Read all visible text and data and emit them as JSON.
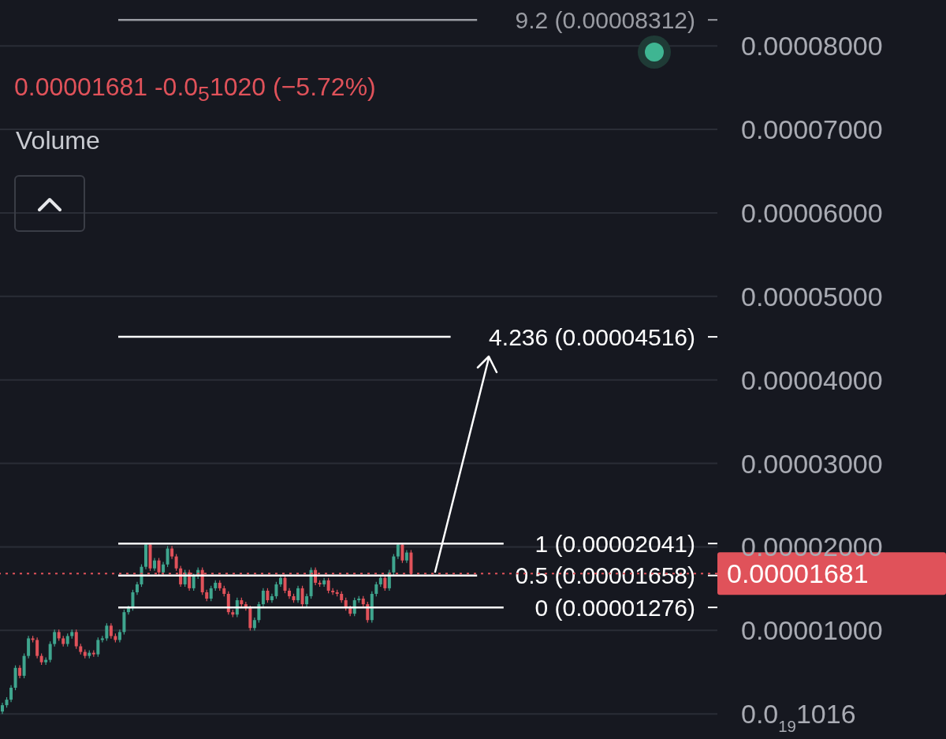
{
  "chart_data": {
    "type": "candlestick",
    "annotations": [
      "0.00001681 -0.0$_{5}$1020 (−5.72%)",
      "Volume"
    ],
    "colors": [
      "#3fa58e",
      "#3fa58e",
      "#3fa58e",
      "#3fa58e",
      "#e0525a",
      "#3fa58e",
      "#3fa58e",
      "#e0525a",
      "#e0525a",
      "#e0525a",
      "#3fa58e",
      "#3fa58e",
      "#3fa58e",
      "#e0525a",
      "#e0525a",
      "#3fa58e",
      "#3fa58e",
      "#e0525a",
      "#e0525a",
      "#e0525a",
      "#3fa58e",
      "#e0525a",
      "#3fa58e",
      "#3fa58e",
      "#3fa58e",
      "#e0525a",
      "#e0525a",
      "#3fa58e",
      "#3fa58e",
      "#3fa58e",
      "#3fa58e",
      "#3fa58e",
      "#3fa58e",
      "#3fa58e",
      "#e0525a",
      "#3fa58e",
      "#e0525a",
      "#3fa58e",
      "#3fa58e",
      "#e0525a",
      "#e0525a",
      "#e0525a",
      "#3fa58e",
      "#e0525a",
      "#3fa58e",
      "#3fa58e",
      "#e0525a",
      "#e0525a",
      "#3fa58e",
      "#3fa58e",
      "#e0525a",
      "#e0525a",
      "#e0525a",
      "#e0525a",
      "#3fa58e",
      "#e0525a",
      "#e0525a",
      "#e0525a",
      "#3fa58e",
      "#3fa58e",
      "#3fa58e",
      "#e0525a",
      "#3fa58e",
      "#3fa58e",
      "#3fa58e",
      "#e0525a",
      "#e0525a",
      "#e0525a",
      "#3fa58e",
      "#e0525a",
      "#3fa58e",
      "#3fa58e",
      "#e0525a",
      "#e0525a",
      "#3fa58e",
      "#e0525a",
      "#e0525a",
      "#e0525a",
      "#e0525a",
      "#e0525a",
      "#e0525a",
      "#3fa58e",
      "#3fa58e",
      "#e0525a",
      "#e0525a",
      "#3fa58e",
      "#3fa58e",
      "#3fa58e",
      "#e0525a",
      "#3fa58e",
      "#3fa58e",
      "#3fa58e",
      "#e0525a",
      "#3fa58e",
      "#e0525a",
      null,
      null,
      null,
      null,
      null,
      null,
      null,
      null,
      null,
      null,
      null,
      null,
      null,
      null,
      null,
      null,
      null,
      null,
      null,
      null,
      null,
      null,
      null,
      null,
      null,
      null,
      null,
      null,
      null,
      null,
      null,
      null,
      null,
      null,
      null,
      null,
      null,
      null,
      null,
      null,
      null,
      null,
      null,
      null,
      null,
      null,
      null,
      null,
      null,
      null,
      null,
      null,
      null,
      null,
      null,
      null,
      null,
      null,
      null,
      null,
      null,
      null,
      null,
      null,
      null,
      null,
      null,
      null,
      null,
      null
    ],
    "grid": "y",
    "ylim": [
      -3e-06,
      8.55e-05
    ],
    "yticks": [
      {
        "value": 1.016e-20,
        "label": "0.0$_{19}$1016"
      },
      {
        "value": 1e-05,
        "label": "0.00001000"
      },
      {
        "value": 2e-05,
        "label": "0.00002000"
      },
      {
        "value": 3e-05,
        "label": "0.00003000"
      },
      {
        "value": 4e-05,
        "label": "0.00004000"
      },
      {
        "value": 5e-05,
        "label": "0.00005000"
      },
      {
        "value": 6e-05,
        "label": "0.00006000"
      },
      {
        "value": 7e-05,
        "label": "0.00007000"
      },
      {
        "value": 8e-05,
        "label": "0.00008000"
      }
    ],
    "ref_lines": [
      {
        "axis": "y",
        "value": 8.312e-05,
        "label": "9.2 (0.00008312)",
        "color": "#9a9ca3"
      },
      {
        "axis": "y",
        "value": 4.516e-05,
        "label": "4.236 (0.00004516)",
        "color": "#ffffff"
      },
      {
        "axis": "y",
        "value": 2.041e-05,
        "label": "1 (0.00002041)",
        "color": "#ffffff"
      },
      {
        "axis": "y",
        "value": 1.658e-05,
        "label": "0.5 (0.00001658)",
        "color": "#ffffff"
      },
      {
        "axis": "y",
        "value": 1.276e-05,
        "label": "0 (0.00001276)",
        "color": "#ffffff"
      },
      {
        "axis": "y",
        "value": 1.681e-05,
        "label": "0.00001681",
        "color": "#e0525a",
        "line_style": "dotted"
      }
    ],
    "categories": [
      null,
      null,
      null,
      null,
      null,
      null,
      null,
      null,
      null,
      null,
      null,
      null,
      null,
      null,
      null,
      null,
      null,
      null,
      null,
      null,
      null,
      null,
      null,
      null,
      null,
      null,
      null,
      null,
      null,
      null,
      null,
      null,
      null,
      null,
      null,
      null,
      null,
      null,
      null,
      null,
      null,
      null,
      null,
      null,
      null,
      null,
      null,
      null,
      null,
      null,
      null,
      null,
      null,
      null,
      null,
      null,
      null,
      null,
      null,
      null,
      null,
      null,
      null,
      null,
      null,
      null,
      null,
      null,
      null,
      null,
      null,
      null,
      null,
      null,
      null,
      null,
      null,
      null,
      null,
      null,
      null,
      null,
      null,
      null,
      null,
      null,
      null,
      null,
      null,
      null,
      null,
      null,
      null,
      null,
      null,
      null,
      null,
      null,
      null,
      null,
      null,
      null,
      null,
      null,
      null,
      null,
      null,
      null,
      null,
      null,
      null,
      null,
      null,
      null,
      null,
      null,
      null,
      null,
      null,
      null,
      null,
      null,
      null,
      null,
      null,
      null,
      null,
      null,
      null,
      null,
      null,
      null,
      null,
      null,
      null,
      null,
      null,
      null,
      null,
      null,
      null,
      null,
      null,
      null,
      null,
      null,
      null,
      null,
      null,
      null,
      null,
      null,
      null,
      null,
      null,
      null,
      null,
      null,
      null,
      null,
      null,
      null,
      null,
      null,
      null
    ],
    "ohlc": [
      [
        2.9e-07,
        1.35e-06,
        0,
        1.05e-06
      ],
      [
        1.05e-06,
        2.01e-06,
        7.5e-07,
        1.71e-06
      ],
      [
        1.71e-06,
        3.44e-06,
        1.41e-06,
        3.14e-06
      ],
      [
        3.14e-06,
        5.82e-06,
        2.84e-06,
        5.52e-06
      ],
      [
        5.52e-06,
        5.82e-06,
        4.27e-06,
        4.57e-06
      ],
      [
        4.57e-06,
        7.25e-06,
        4.27e-06,
        6.95e-06
      ],
      [
        6.95e-06,
        9.35e-06,
        6.65e-06,
        9.05e-06
      ],
      [
        9.05e-06,
        9.35e-06,
        8.56e-06,
        8.86e-06
      ],
      [
        8.86e-06,
        9.16e-06,
        6.65e-06,
        6.95e-06
      ],
      [
        6.95e-06,
        7.25e-06,
        5.89e-06,
        6.19e-06
      ],
      [
        6.19e-06,
        6.78e-06,
        5.89e-06,
        6.48e-06
      ],
      [
        6.48e-06,
        8.68e-06,
        6.18e-06,
        8.38e-06
      ],
      [
        8.38e-06,
        1.011e-05,
        8.08e-06,
        9.81e-06
      ],
      [
        9.81e-06,
        1.011e-05,
        8.75e-06,
        9.05e-06
      ],
      [
        9.05e-06,
        9.35e-06,
        8.08e-06,
        8.38e-06
      ],
      [
        8.38e-06,
        9.63e-06,
        8.08e-06,
        9.33e-06
      ],
      [
        9.33e-06,
        1.011e-05,
        9.03e-06,
        9.81e-06
      ],
      [
        9.81e-06,
        1.011e-05,
        7.8e-06,
        8.1e-06
      ],
      [
        8.1e-06,
        8.4e-06,
        7.13e-06,
        7.43e-06
      ],
      [
        7.43e-06,
        7.73e-06,
        6.65e-06,
        6.95e-06
      ],
      [
        6.95e-06,
        7.63e-06,
        6.65e-06,
        7.33e-06
      ],
      [
        7.33e-06,
        7.63e-06,
        6.84e-06,
        7.14e-06
      ],
      [
        7.14e-06,
        9.16e-06,
        6.84e-06,
        8.86e-06
      ],
      [
        8.86e-06,
        9.35e-06,
        8.56e-06,
        9.05e-06
      ],
      [
        9.05e-06,
        1.087e-05,
        8.75e-06,
        1.057e-05
      ],
      [
        1.057e-05,
        1.087e-05,
        9.03e-06,
        9.33e-06
      ],
      [
        9.33e-06,
        9.63e-06,
        8.56e-06,
        8.86e-06
      ],
      [
        8.86e-06,
        1.011e-05,
        8.56e-06,
        9.81e-06
      ],
      [
        9.81e-06,
        1.249e-05,
        9.51e-06,
        1.219e-05
      ],
      [
        1.219e-05,
        1.297e-05,
        1.189e-05,
        1.267e-05
      ],
      [
        1.267e-05,
        1.487e-05,
        1.237e-05,
        1.457e-05
      ],
      [
        1.457e-05,
        1.582e-05,
        1.427e-05,
        1.552e-05
      ],
      [
        1.552e-05,
        1.792e-05,
        1.522e-05,
        1.762e-05
      ],
      [
        1.762e-05,
        2.041e-05,
        1.732e-05,
        2.029e-05
      ],
      [
        2.029e-05,
        2.041e-05,
        1.713e-05,
        1.743e-05
      ],
      [
        1.743e-05,
        1.868e-05,
        1.713e-05,
        1.838e-05
      ],
      [
        1.838e-05,
        1.868e-05,
        1.665e-05,
        1.695e-05
      ],
      [
        1.695e-05,
        1.82e-05,
        1.665e-05,
        1.79e-05
      ],
      [
        1.79e-05,
        2.011e-05,
        1.76e-05,
        1.981e-05
      ],
      [
        1.981e-05,
        2.011e-05,
        1.856e-05,
        1.886e-05
      ],
      [
        1.886e-05,
        1.916e-05,
        1.713e-05,
        1.743e-05
      ],
      [
        1.743e-05,
        1.773e-05,
        1.522e-05,
        1.552e-05
      ],
      [
        1.552e-05,
        1.725e-05,
        1.522e-05,
        1.695e-05
      ],
      [
        1.695e-05,
        1.725e-05,
        1.475e-05,
        1.505e-05
      ],
      [
        1.505e-05,
        1.678e-05,
        1.475e-05,
        1.648e-05
      ],
      [
        1.648e-05,
        1.754e-05,
        1.618e-05,
        1.724e-05
      ],
      [
        1.724e-05,
        1.754e-05,
        1.427e-05,
        1.457e-05
      ],
      [
        1.457e-05,
        1.487e-05,
        1.351e-05,
        1.381e-05
      ],
      [
        1.381e-05,
        1.535e-05,
        1.351e-05,
        1.505e-05
      ],
      [
        1.505e-05,
        1.601e-05,
        1.475e-05,
        1.571e-05
      ],
      [
        1.571e-05,
        1.601e-05,
        1.475e-05,
        1.505e-05
      ],
      [
        1.505e-05,
        1.535e-05,
        1.408e-05,
        1.438e-05
      ],
      [
        1.438e-05,
        1.468e-05,
        1.189e-05,
        1.219e-05
      ],
      [
        1.219e-05,
        1.249e-05,
        1.16e-05,
        1.19e-05
      ],
      [
        1.19e-05,
        1.392e-05,
        1.16e-05,
        1.362e-05
      ],
      [
        1.362e-05,
        1.392e-05,
        1.284e-05,
        1.314e-05
      ],
      [
        1.314e-05,
        1.344e-05,
        1.237e-05,
        1.267e-05
      ],
      [
        1.267e-05,
        1.297e-05,
        9.99e-06,
        1.029e-05
      ],
      [
        1.029e-05,
        1.154e-05,
        9.99e-06,
        1.124e-05
      ],
      [
        1.124e-05,
        1.344e-05,
        1.094e-05,
        1.314e-05
      ],
      [
        1.314e-05,
        1.506e-05,
        1.284e-05,
        1.476e-05
      ],
      [
        1.476e-05,
        1.506e-05,
        1.332e-05,
        1.362e-05
      ],
      [
        1.362e-05,
        1.44e-05,
        1.332e-05,
        1.41e-05
      ],
      [
        1.41e-05,
        1.582e-05,
        1.38e-05,
        1.552e-05
      ],
      [
        1.552e-05,
        1.659e-05,
        1.522e-05,
        1.629e-05
      ],
      [
        1.629e-05,
        1.659e-05,
        1.446e-05,
        1.476e-05
      ],
      [
        1.476e-05,
        1.506e-05,
        1.38e-05,
        1.41e-05
      ],
      [
        1.41e-05,
        1.44e-05,
        1.332e-05,
        1.362e-05
      ],
      [
        1.362e-05,
        1.535e-05,
        1.332e-05,
        1.505e-05
      ],
      [
        1.505e-05,
        1.535e-05,
        1.284e-05,
        1.314e-05
      ],
      [
        1.314e-05,
        1.44e-05,
        1.284e-05,
        1.41e-05
      ],
      [
        1.41e-05,
        1.754e-05,
        1.38e-05,
        1.724e-05
      ],
      [
        1.724e-05,
        1.754e-05,
        1.541e-05,
        1.571e-05
      ],
      [
        1.571e-05,
        1.601e-05,
        1.522e-05,
        1.552e-05
      ],
      [
        1.552e-05,
        1.63e-05,
        1.522e-05,
        1.6e-05
      ],
      [
        1.6e-05,
        1.63e-05,
        1.446e-05,
        1.476e-05
      ],
      [
        1.476e-05,
        1.506e-05,
        1.427e-05,
        1.457e-05
      ],
      [
        1.457e-05,
        1.487e-05,
        1.408e-05,
        1.438e-05
      ],
      [
        1.438e-05,
        1.468e-05,
        1.332e-05,
        1.362e-05
      ],
      [
        1.362e-05,
        1.392e-05,
        1.237e-05,
        1.267e-05
      ],
      [
        1.267e-05,
        1.297e-05,
        1.17e-05,
        1.2e-05
      ],
      [
        1.2e-05,
        1.392e-05,
        1.17e-05,
        1.362e-05
      ],
      [
        1.362e-05,
        1.411e-05,
        1.332e-05,
        1.381e-05
      ],
      [
        1.381e-05,
        1.411e-05,
        1.284e-05,
        1.314e-05
      ],
      [
        1.314e-05,
        1.344e-05,
        1.094e-05,
        1.124e-05
      ],
      [
        1.124e-05,
        1.468e-05,
        1.094e-05,
        1.438e-05
      ],
      [
        1.438e-05,
        1.582e-05,
        1.408e-05,
        1.552e-05
      ],
      [
        1.552e-05,
        1.659e-05,
        1.522e-05,
        1.629e-05
      ],
      [
        1.629e-05,
        1.659e-05,
        1.475e-05,
        1.505e-05
      ],
      [
        1.505e-05,
        1.725e-05,
        1.475e-05,
        1.695e-05
      ],
      [
        1.695e-05,
        1.916e-05,
        1.665e-05,
        1.886e-05
      ],
      [
        1.886e-05,
        2.041e-05,
        1.856e-05,
        2.029e-05
      ],
      [
        2.029e-05,
        2.041e-05,
        1.808e-05,
        1.838e-05
      ],
      [
        1.838e-05,
        1.963e-05,
        1.808e-05,
        1.933e-05
      ],
      [
        1.933e-05,
        1.963e-05,
        1.651e-05,
        1.681e-05
      ],
      null,
      null,
      null,
      null,
      null,
      null,
      null,
      null,
      null,
      null,
      null,
      null,
      null,
      null,
      null,
      null,
      null,
      null,
      null,
      null,
      null,
      null,
      null,
      null,
      null,
      null,
      null,
      null,
      null,
      null,
      null,
      null,
      null,
      null,
      null,
      null,
      null,
      null,
      null,
      null,
      null,
      null,
      null,
      null,
      null,
      null,
      null,
      null,
      null,
      null,
      null,
      null,
      null,
      null,
      null,
      null,
      null,
      null,
      null,
      null,
      null,
      null,
      null,
      null,
      null,
      null,
      null,
      null,
      null,
      null
    ]
  }
}
